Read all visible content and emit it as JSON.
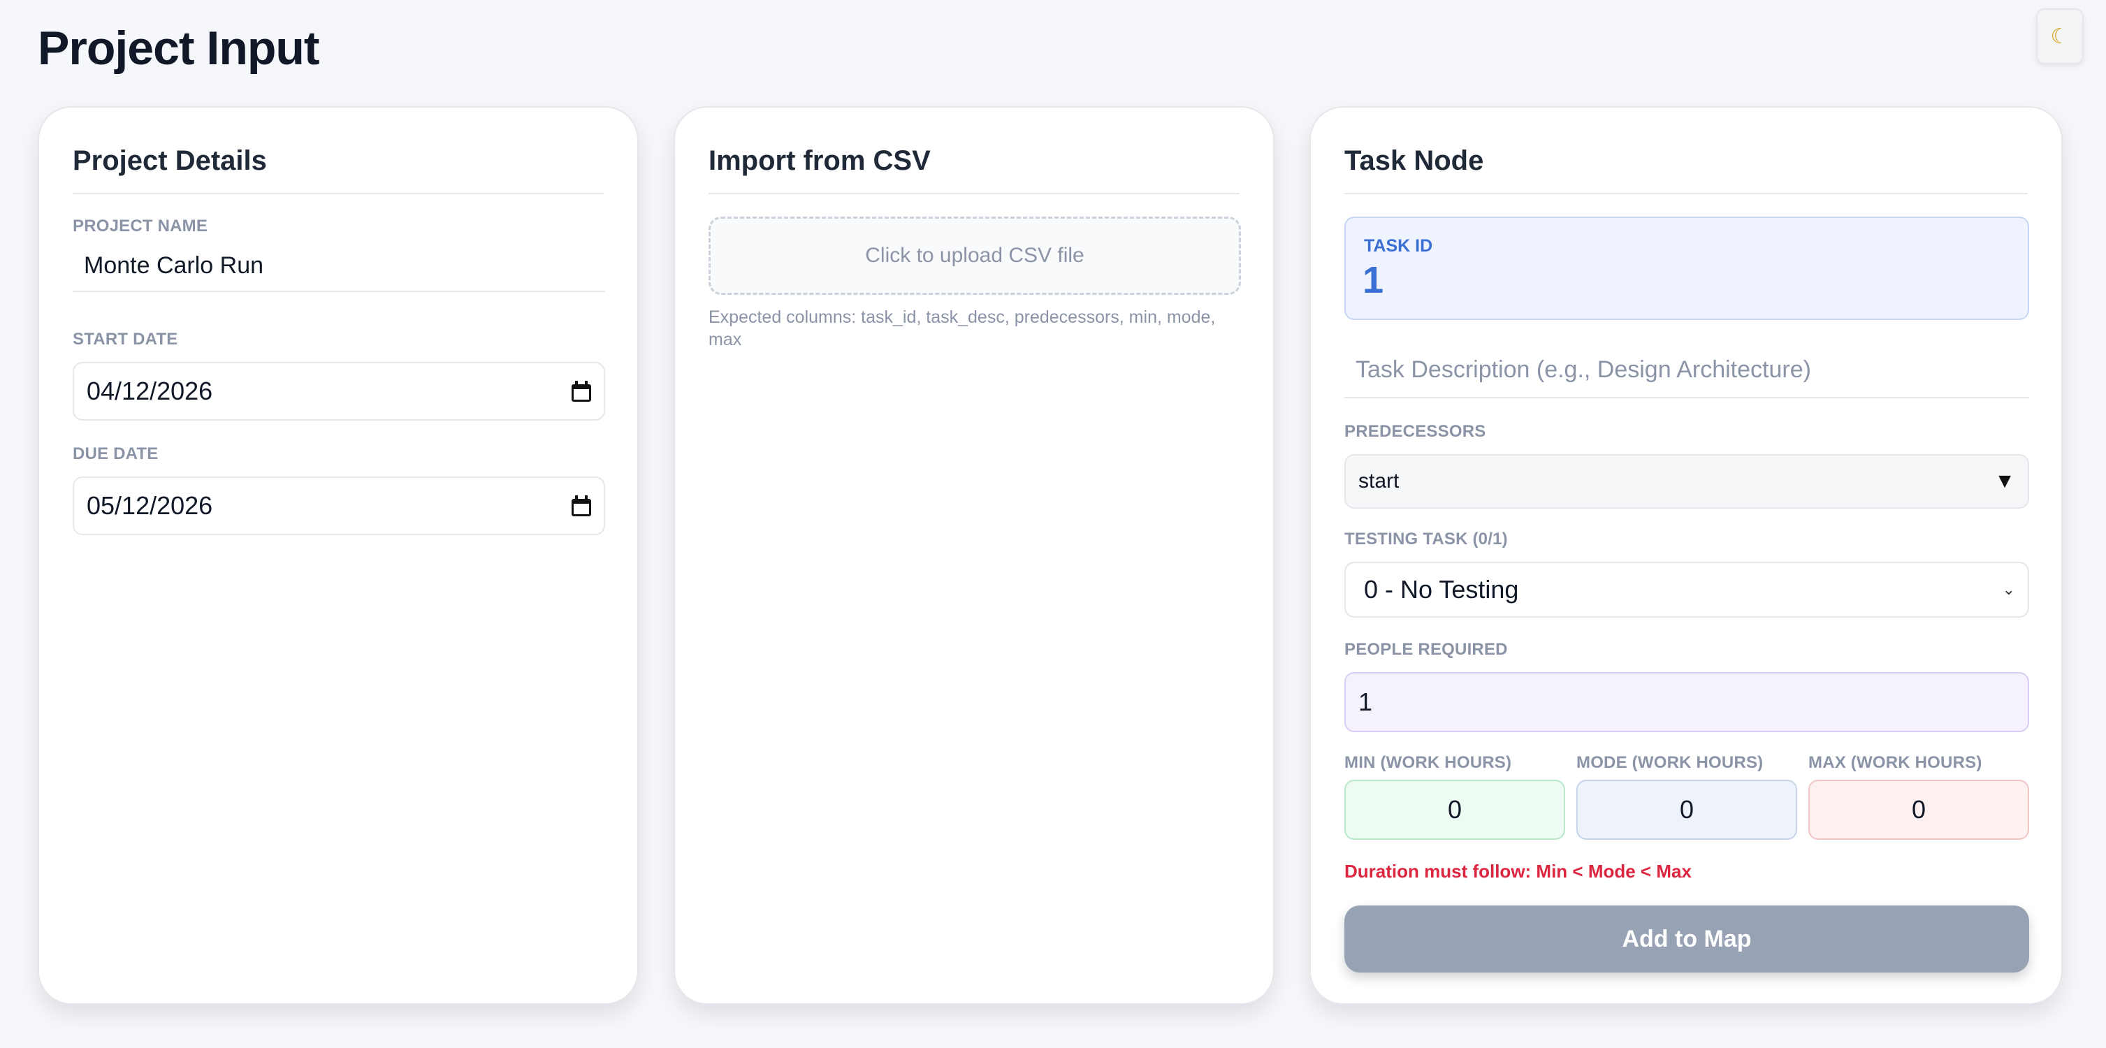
{
  "page": {
    "title": "Project Input",
    "theme_toggle_icon": "☾"
  },
  "project_details": {
    "title": "Project Details",
    "name_label": "PROJECT NAME",
    "name_value": "Monte Carlo Run",
    "start_label": "START DATE",
    "start_value": "04/12/2026",
    "due_label": "DUE DATE",
    "due_value": "05/12/2026"
  },
  "csv_import": {
    "title": "Import from CSV",
    "upload_text": "Click to upload CSV file",
    "hint": "Expected columns: task_id, task_desc, predecessors, min, mode, max"
  },
  "task_node": {
    "title": "Task Node",
    "task_id_label": "TASK ID",
    "task_id_value": "1",
    "description_placeholder": "Task Description (e.g., Design Architecture)",
    "predecessors_label": "PREDECESSORS",
    "predecessors_value": "start",
    "testing_label": "TESTING TASK (0/1)",
    "testing_value": "0 - No Testing",
    "people_label": "PEOPLE REQUIRED",
    "people_value": "1",
    "min_label": "MIN (WORK HOURS)",
    "mode_label": "MODE (WORK HOURS)",
    "max_label": "MAX (WORK HOURS)",
    "min_value": "0",
    "mode_value": "0",
    "max_value": "0",
    "error": "Duration must follow: Min < Mode < Max",
    "submit_label": "Add to Map"
  },
  "colors": {
    "error": "#dc2640",
    "task_id_accent": "#3b6fd4",
    "button_disabled": "#98a2b5"
  }
}
